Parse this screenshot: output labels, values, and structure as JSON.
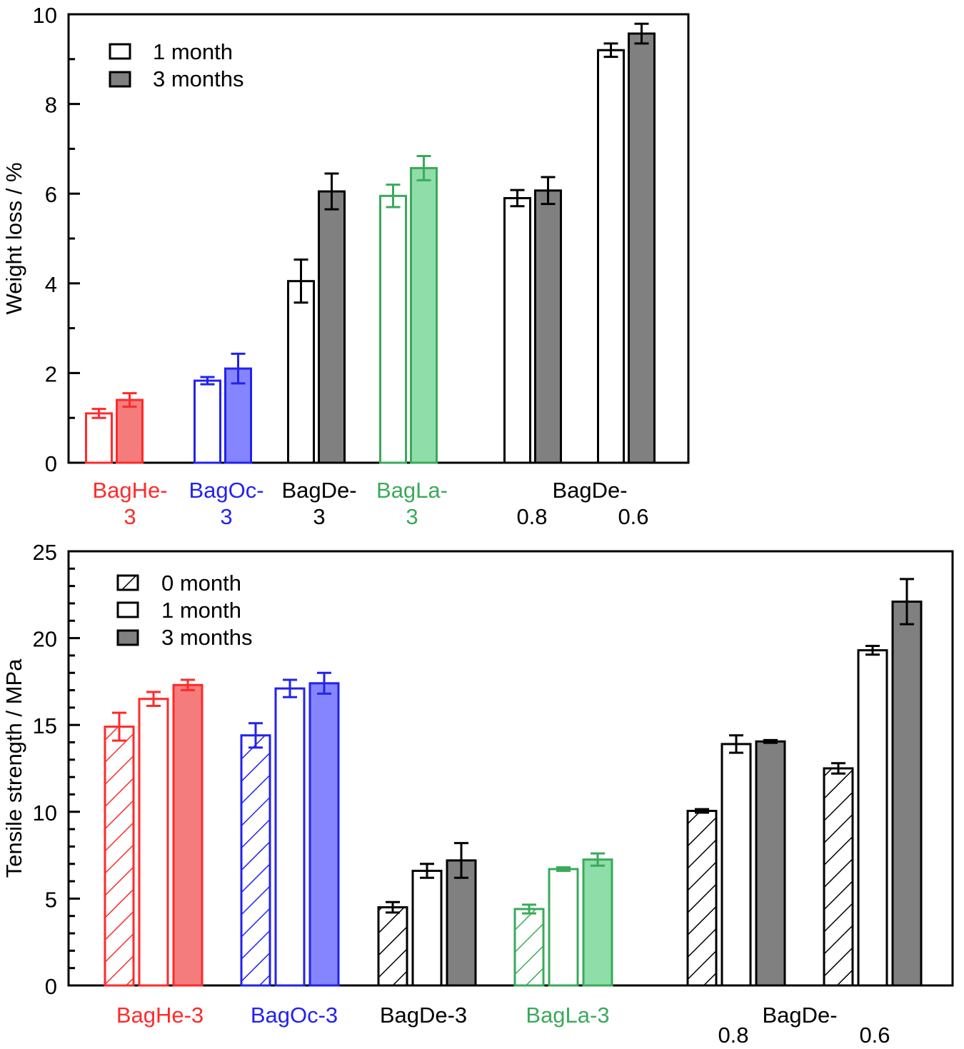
{
  "chart_data": [
    {
      "type": "bar",
      "ylabel": "Weight loss / %",
      "xlabel": "",
      "ylim": [
        0,
        10
      ],
      "yticks": [
        "0",
        "2",
        "4",
        "6",
        "8",
        "10"
      ],
      "legend": {
        "position": "top-left",
        "entries": [
          "1 month",
          "3 months"
        ]
      },
      "categories": [
        {
          "label": [
            "BagHe-",
            "3"
          ],
          "color": "#FF2A2A",
          "fill": "#F47C7C",
          "one_month": 1.1,
          "one_month_err": 0.1,
          "three_months": 1.4,
          "three_months_err": 0.15
        },
        {
          "label": [
            "BagOc-",
            "3"
          ],
          "color": "#2222EE",
          "fill": "#8585FF",
          "one_month": 1.83,
          "one_month_err": 0.08,
          "three_months": 2.1,
          "three_months_err": 0.33
        },
        {
          "label": [
            "BagDe-",
            "3"
          ],
          "color": "#000000",
          "fill": "#808080",
          "one_month": 4.05,
          "one_month_err": 0.48,
          "three_months": 6.05,
          "three_months_err": 0.4
        },
        {
          "label": [
            "BagLa-",
            "3"
          ],
          "color": "#3AAA5A",
          "fill": "#8FDDA9",
          "one_month": 5.95,
          "one_month_err": 0.25,
          "three_months": 6.57,
          "three_months_err": 0.27
        },
        {
          "label": [
            "BagDe-",
            "0.8"
          ],
          "color": "#000000",
          "fill": "#808080",
          "one_month": 5.9,
          "one_month_err": 0.18,
          "three_months": 6.07,
          "three_months_err": 0.3
        },
        {
          "label": [
            "",
            "0.6"
          ],
          "color": "#000000",
          "fill": "#808080",
          "one_month": 9.2,
          "one_month_err": 0.15,
          "three_months": 9.57,
          "three_months_err": 0.22
        }
      ]
    },
    {
      "type": "bar",
      "ylabel": "Tensile strength / MPa",
      "xlabel": "",
      "ylim": [
        0,
        25
      ],
      "yticks": [
        "0",
        "5",
        "10",
        "15",
        "20",
        "25"
      ],
      "legend": {
        "position": "top-left",
        "entries": [
          "0 month",
          "1 month",
          "3 months"
        ]
      },
      "categories": [
        {
          "label": [
            "BagHe-3"
          ],
          "color": "#FF2A2A",
          "fill": "#F47C7C",
          "zero_month": 14.9,
          "zero_month_err": 0.8,
          "one_month": 16.5,
          "one_month_err": 0.4,
          "three_months": 17.3,
          "three_months_err": 0.3
        },
        {
          "label": [
            "BagOc-3"
          ],
          "color": "#2222EE",
          "fill": "#8585FF",
          "zero_month": 14.4,
          "zero_month_err": 0.7,
          "one_month": 17.1,
          "one_month_err": 0.5,
          "three_months": 17.4,
          "three_months_err": 0.6
        },
        {
          "label": [
            "BagDe-3"
          ],
          "color": "#000000",
          "fill": "#808080",
          "zero_month": 4.5,
          "zero_month_err": 0.3,
          "one_month": 6.6,
          "one_month_err": 0.4,
          "three_months": 7.2,
          "three_months_err": 1.0
        },
        {
          "label": [
            "BagLa-3"
          ],
          "color": "#3AAA5A",
          "fill": "#8FDDA9",
          "zero_month": 4.4,
          "zero_month_err": 0.25,
          "one_month": 6.7,
          "one_month_err": 0.1,
          "three_months": 7.25,
          "three_months_err": 0.35
        },
        {
          "label": [
            "0.8"
          ],
          "group_label": "BagDe-",
          "color": "#000000",
          "fill": "#808080",
          "zero_month": 10.05,
          "zero_month_err": 0.1,
          "one_month": 13.9,
          "one_month_err": 0.5,
          "three_months": 14.05,
          "three_months_err": 0.08
        },
        {
          "label": [
            "0.6"
          ],
          "color": "#000000",
          "fill": "#808080",
          "zero_month": 12.5,
          "zero_month_err": 0.3,
          "one_month": 19.3,
          "one_month_err": 0.25,
          "three_months": 22.1,
          "three_months_err": 1.3
        }
      ]
    }
  ]
}
